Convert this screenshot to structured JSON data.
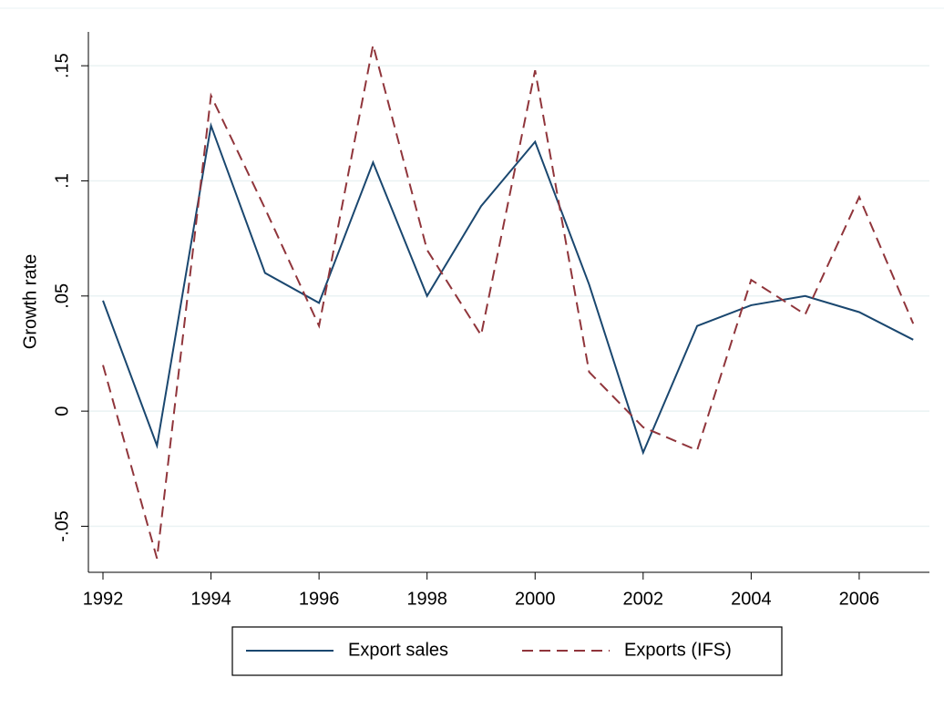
{
  "chart_data": {
    "type": "line",
    "y_label": "Growth rate",
    "x": [
      1992,
      1993,
      1994,
      1995,
      1996,
      1997,
      1998,
      1999,
      2000,
      2001,
      2002,
      2003,
      2004,
      2005,
      2006,
      2007
    ],
    "series": [
      {
        "name": "Export sales",
        "color": "#1a476f",
        "dash": false,
        "values": [
          0.048,
          -0.015,
          0.124,
          0.06,
          0.047,
          0.108,
          0.05,
          0.089,
          0.117,
          0.055,
          -0.018,
          0.037,
          0.046,
          0.05,
          0.043,
          0.031
        ]
      },
      {
        "name": "Exports (IFS)",
        "color": "#90353b",
        "dash": true,
        "values": [
          0.02,
          -0.064,
          0.137,
          0.088,
          0.037,
          0.159,
          0.07,
          0.033,
          0.148,
          0.017,
          -0.007,
          -0.017,
          0.057,
          0.042,
          0.093,
          0.038
        ]
      }
    ],
    "xlim": [
      1991.73,
      2007.3
    ],
    "xticks": [
      1992,
      1994,
      1996,
      1998,
      2000,
      2002,
      2004,
      2006
    ],
    "ylim": [
      -0.07,
      0.1647
    ],
    "yticks": [
      {
        "value": -0.05,
        "label": "-.05"
      },
      0,
      {
        "value": 0.05,
        "label": ".05"
      },
      {
        "value": 0.1,
        "label": ".1"
      },
      {
        "value": 0.15,
        "label": ".15"
      }
    ],
    "grid": true,
    "legend": "bottom"
  }
}
